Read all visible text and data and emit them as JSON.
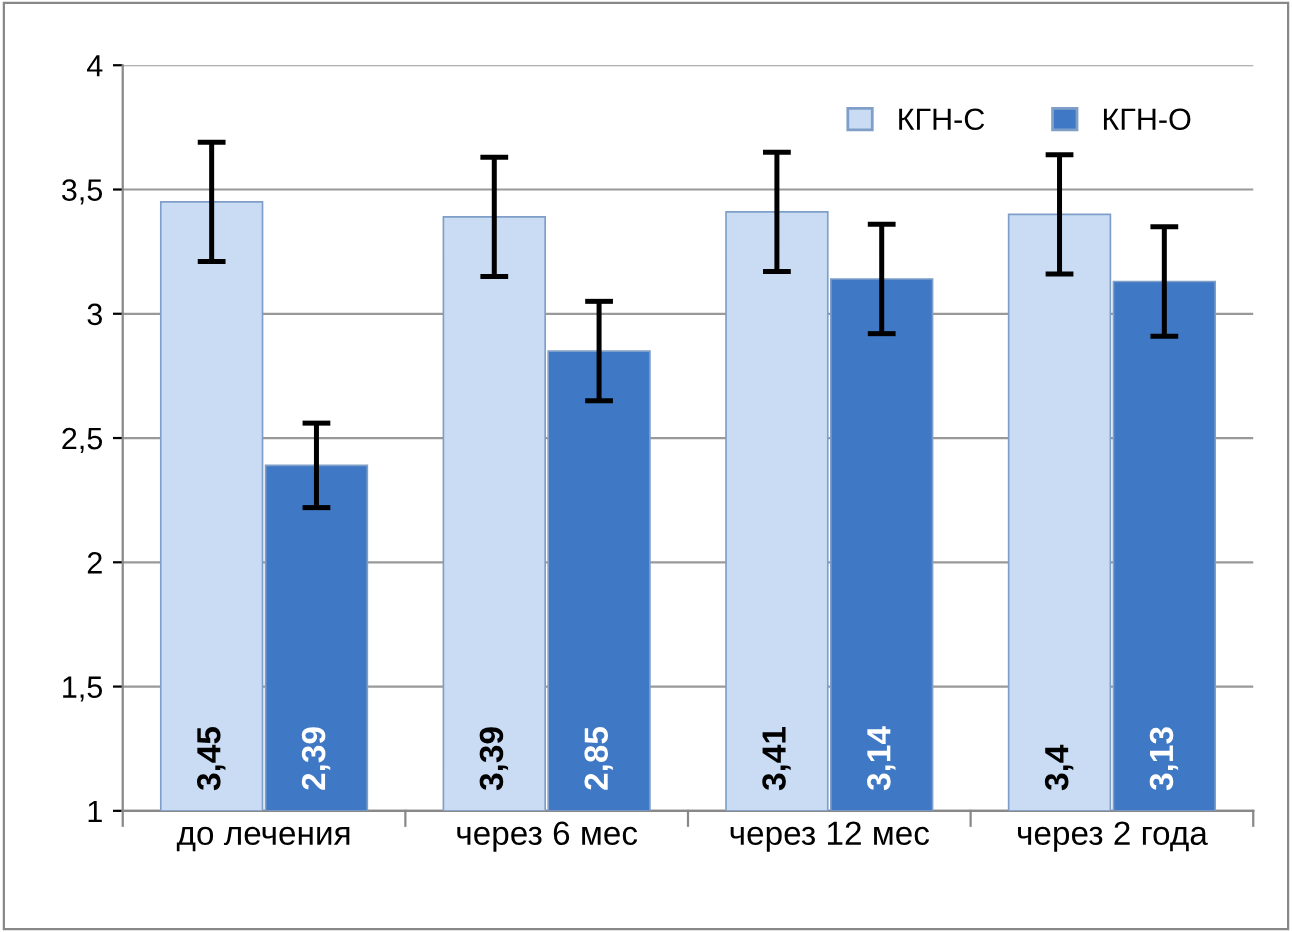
{
  "chart_data": {
    "type": "bar",
    "categories": [
      "до лечения",
      "через 6 мес",
      "через 12 мес",
      "через 2 года"
    ],
    "series": [
      {
        "name": "КГН-С",
        "color": "#c9dcf4",
        "values": [
          3.45,
          3.39,
          3.41,
          3.4
        ],
        "errors": [
          0.24,
          0.24,
          0.24,
          0.24
        ],
        "value_labels": [
          "3,45",
          "3,39",
          "3,41",
          "3,4"
        ]
      },
      {
        "name": "КГН-О",
        "color": "#3f78c4",
        "values": [
          2.39,
          2.85,
          3.14,
          3.13
        ],
        "errors": [
          0.17,
          0.2,
          0.22,
          0.22
        ],
        "value_labels": [
          "2,39",
          "2,85",
          "3,14",
          "3,13"
        ]
      }
    ],
    "ylim": [
      1,
      4
    ],
    "yticks": [
      1,
      {
        "value": 1.5,
        "label": "1,5"
      },
      2,
      {
        "value": 2.5,
        "label": "2,5"
      },
      3,
      {
        "value": 3.5,
        "label": "3,5"
      },
      4
    ],
    "grid": "y",
    "legend": "top right"
  }
}
